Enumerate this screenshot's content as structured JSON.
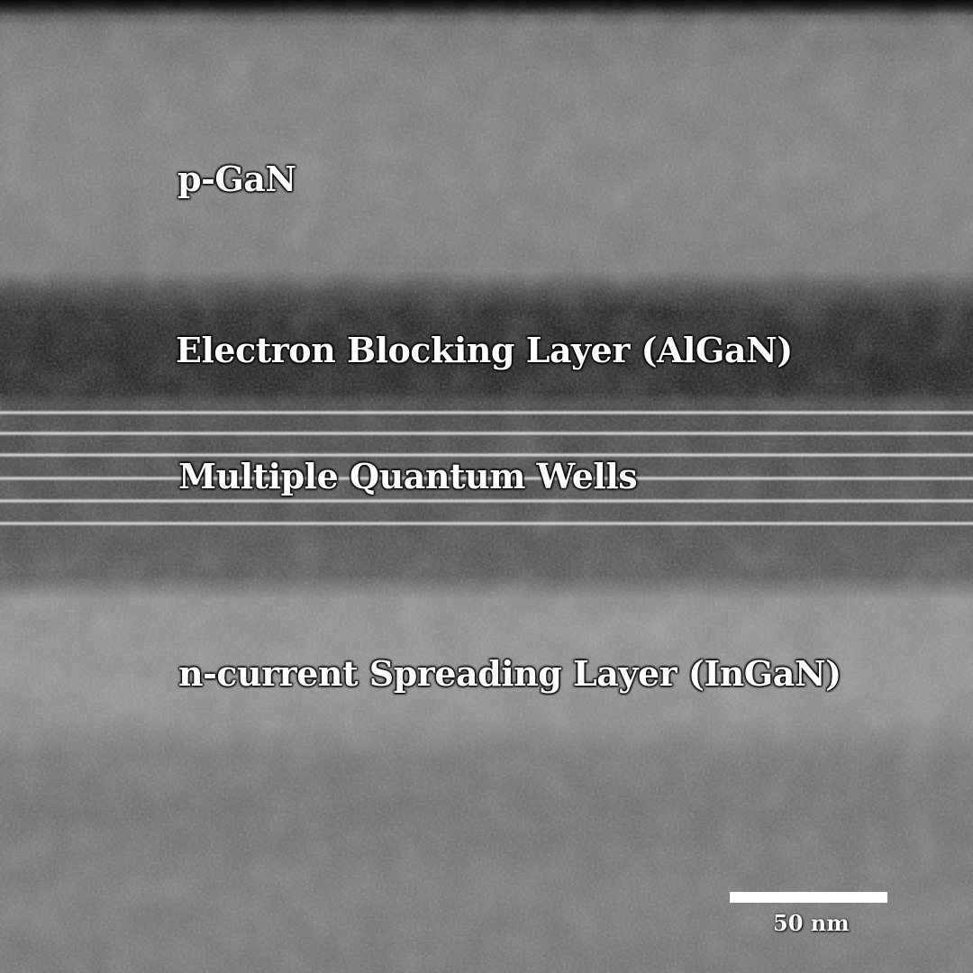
{
  "image": {
    "kind": "cross-section electron micrograph",
    "layers": [
      {
        "id": "pgan",
        "label": "p-GaN"
      },
      {
        "id": "ebl",
        "label": "Electron Blocking Layer (AlGaN)"
      },
      {
        "id": "mqw",
        "label": "Multiple Quantum Wells"
      },
      {
        "id": "ncsl",
        "label": "n-current Spreading Layer (InGaN)"
      }
    ],
    "scale_bar": {
      "label": "50 nm"
    }
  }
}
